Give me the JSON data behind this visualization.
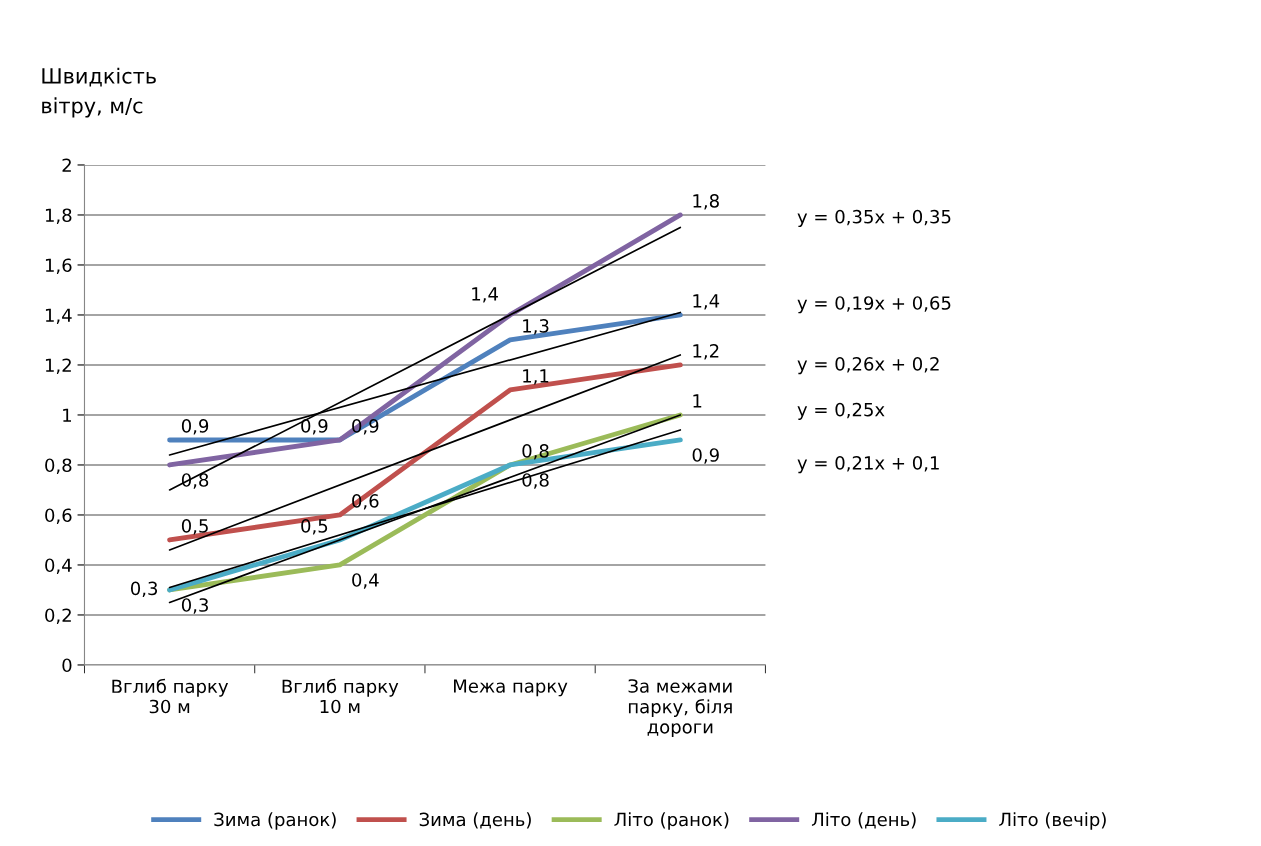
{
  "chart_data": {
    "type": "line",
    "ylabel": "Швидкість\nвітру, м/с",
    "categories": [
      "Вглиб парку\n30 м",
      "Вглиб парку\n10 м",
      "Межа парку",
      "За межами\nпарку, біля\nдороги"
    ],
    "ylim": [
      0,
      2
    ],
    "yticks": [
      0,
      {
        "value": 0.2,
        "label": "0,2"
      },
      {
        "value": 0.4,
        "label": "0,4"
      },
      {
        "value": 0.6,
        "label": "0,6"
      },
      {
        "value": 0.8,
        "label": "0,8"
      },
      1,
      {
        "value": 1.2,
        "label": "1,2"
      },
      {
        "value": 1.4,
        "label": "1,4"
      },
      {
        "value": 1.6,
        "label": "1,6"
      },
      {
        "value": 1.8,
        "label": "1,8"
      },
      2
    ],
    "grid": "y",
    "legend": "bottom",
    "marker": "none",
    "line_style": "solid",
    "series": [
      {
        "name": "Зима (ранок)",
        "color": "#4f81bd",
        "values": [
          0.9,
          0.9,
          1.3,
          1.4
        ],
        "value_labels": [
          "0,9",
          "0,9",
          "1,3",
          "1,4"
        ]
      },
      {
        "name": "Зима (день)",
        "color": "#c0504d",
        "values": [
          0.5,
          0.6,
          1.1,
          1.2
        ],
        "value_labels": [
          "0,5",
          "0,6",
          "1,1",
          "1,2"
        ]
      },
      {
        "name": "Літо (ранок)",
        "color": "#9bbb59",
        "values": [
          0.3,
          0.4,
          0.8,
          1.0
        ],
        "value_labels": [
          "0,3",
          "0,4",
          "0,8",
          "1"
        ]
      },
      {
        "name": "Літо (день)",
        "color": "#8064a2",
        "values": [
          0.8,
          0.9,
          1.4,
          1.8
        ],
        "value_labels": [
          "0,8",
          "0,9",
          "1,4",
          "1,8"
        ]
      },
      {
        "name": "Літо (вечір)",
        "color": "#4bacc6",
        "values": [
          0.3,
          0.5,
          0.8,
          0.9
        ],
        "value_labels": [
          "0,3",
          "0,5",
          "0,8",
          "0,9"
        ]
      },
      {
        "type": "line",
        "color": "#000000",
        "x": [
          "Вглиб парку\n30 м",
          "За межами\nпарку, біля\nдороги"
        ],
        "values": [
          0.7,
          1.75
        ]
      },
      {
        "type": "line",
        "color": "#000000",
        "x": [
          "Вглиб парку\n30 м",
          "За межами\nпарку, біля\nдороги"
        ],
        "values": [
          0.84,
          1.41
        ]
      },
      {
        "type": "line",
        "color": "#000000",
        "x": [
          "Вглиб парку\n30 м",
          "За межами\nпарку, біля\nдороги"
        ],
        "values": [
          0.46,
          1.24
        ]
      },
      {
        "type": "line",
        "color": "#000000",
        "x": [
          "Вглиб парку\n30 м",
          "За межами\nпарку, біля\nдороги"
        ],
        "values": [
          0.25,
          1.0
        ]
      },
      {
        "type": "line",
        "color": "#000000",
        "x": [
          "Вглиб парку\n30 м",
          "За межами\nпарку, біля\nдороги"
        ],
        "values": [
          0.31,
          0.94
        ]
      }
    ],
    "annotations": [
      "y = 0,35x + 0,35",
      "y = 0,19x + 0,65",
      "y = 0,26x + 0,2",
      "y = 0,25x",
      "y = 0,21x + 0,1"
    ]
  }
}
